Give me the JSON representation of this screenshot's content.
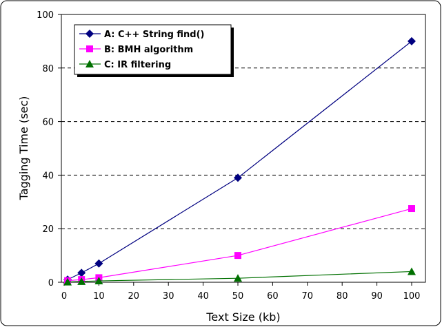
{
  "chart_data": {
    "type": "line",
    "xlabel": "Text Size (kb)",
    "ylabel": "Tagging Time (sec)",
    "xlim": [
      0,
      100
    ],
    "ylim": [
      0,
      100
    ],
    "x_ticks": [
      0,
      10,
      20,
      30,
      40,
      50,
      60,
      70,
      80,
      90,
      100
    ],
    "y_ticks": [
      0,
      20,
      40,
      60,
      80,
      100
    ],
    "grid": "horizontal dashed",
    "legend_position": "top-left",
    "series": [
      {
        "name": "A: C++ String find()",
        "color": "#000080",
        "marker": "diamond",
        "x": [
          1,
          5,
          10,
          50,
          100
        ],
        "y": [
          1,
          3.5,
          7,
          39,
          90
        ]
      },
      {
        "name": "B: BMH algorithm",
        "color": "#ff00ff",
        "marker": "square",
        "x": [
          1,
          5,
          10,
          50,
          100
        ],
        "y": [
          0.6,
          1,
          1.7,
          10,
          27.5
        ]
      },
      {
        "name": "C: IR filtering",
        "color": "#007000",
        "marker": "triangle",
        "x": [
          1,
          5,
          10,
          50,
          100
        ],
        "y": [
          0.1,
          0.3,
          0.5,
          1.5,
          4
        ]
      }
    ]
  }
}
